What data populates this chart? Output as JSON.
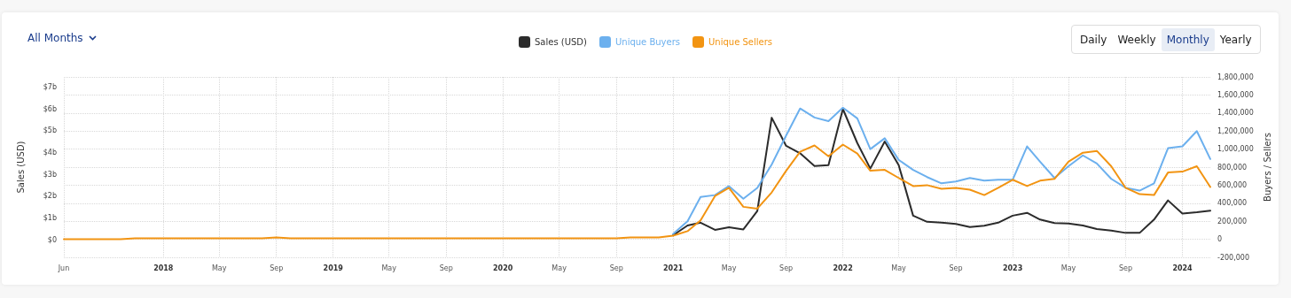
{
  "chart_data": {
    "type": "line",
    "ylabel": "Sales (USD)",
    "y2label": "Buyers / Sellers",
    "annotations": [
      "All Months",
      "Daily",
      "Weekly",
      "Monthly",
      "Yearly"
    ],
    "x": [
      "2017-06",
      "2017-07",
      "2017-08",
      "2017-09",
      "2017-10",
      "2017-11",
      "2017-12",
      "2018-01",
      "2018-02",
      "2018-03",
      "2018-04",
      "2018-05",
      "2018-06",
      "2018-07",
      "2018-08",
      "2018-09",
      "2018-10",
      "2018-11",
      "2018-12",
      "2019-01",
      "2019-02",
      "2019-03",
      "2019-04",
      "2019-05",
      "2019-06",
      "2019-07",
      "2019-08",
      "2019-09",
      "2019-10",
      "2019-11",
      "2019-12",
      "2020-01",
      "2020-02",
      "2020-03",
      "2020-04",
      "2020-05",
      "2020-06",
      "2020-07",
      "2020-08",
      "2020-09",
      "2020-10",
      "2020-11",
      "2020-12",
      "2021-01",
      "2021-02",
      "2021-03",
      "2021-04",
      "2021-05",
      "2021-06",
      "2021-07",
      "2021-08",
      "2021-09",
      "2021-10",
      "2021-11",
      "2021-12",
      "2022-01",
      "2022-02",
      "2022-03",
      "2022-04",
      "2022-05",
      "2022-06",
      "2022-07",
      "2022-08",
      "2022-09",
      "2022-10",
      "2022-11",
      "2022-12",
      "2023-01",
      "2023-02",
      "2023-03",
      "2023-04",
      "2023-05",
      "2023-06",
      "2023-07",
      "2023-08",
      "2023-09",
      "2023-10",
      "2023-11",
      "2023-12",
      "2024-01",
      "2024-02",
      "2024-03"
    ],
    "series": [
      {
        "name": "Sales (USD)",
        "color": "#2b2b2b",
        "values": [
          null,
          null,
          null,
          null,
          null,
          null,
          null,
          null,
          null,
          null,
          null,
          null,
          null,
          null,
          null,
          null,
          null,
          null,
          null,
          null,
          null,
          null,
          null,
          null,
          null,
          null,
          null,
          null,
          null,
          null,
          null,
          null,
          null,
          null,
          null,
          null,
          null,
          null,
          null,
          null,
          null,
          null,
          null,
          0.2,
          0.65,
          0.78,
          0.45,
          0.57,
          0.47,
          1.31,
          5.59,
          4.3,
          3.96,
          3.38,
          3.42,
          5.99,
          4.43,
          3.26,
          4.5,
          3.42,
          1.1,
          0.82,
          0.78,
          0.72,
          0.58,
          0.64,
          0.78,
          1.1,
          1.23,
          0.92,
          0.76,
          0.74,
          0.65,
          0.49,
          0.42,
          0.31,
          0.31,
          0.92,
          1.8,
          1.2,
          1.26,
          1.33
        ]
      },
      {
        "name": "Unique Buyers",
        "color": "#6cb0ee",
        "axis": "y2",
        "values": [
          null,
          null,
          null,
          null,
          null,
          null,
          null,
          null,
          null,
          null,
          null,
          null,
          null,
          null,
          null,
          null,
          null,
          null,
          null,
          null,
          null,
          null,
          null,
          null,
          null,
          null,
          null,
          null,
          null,
          null,
          null,
          null,
          null,
          null,
          null,
          null,
          null,
          null,
          null,
          null,
          null,
          null,
          null,
          60000,
          200000,
          470000,
          490000,
          590000,
          450000,
          570000,
          830000,
          1150000,
          1450000,
          1350000,
          1310000,
          1460000,
          1340000,
          1000000,
          1120000,
          880000,
          770000,
          690000,
          620000,
          640000,
          680000,
          650000,
          660000,
          660000,
          1030000,
          860000,
          680000,
          810000,
          930000,
          840000,
          670000,
          570000,
          540000,
          620000,
          1010000,
          1030000,
          1200000,
          890000
        ]
      },
      {
        "name": "Unique Sellers",
        "color": "#f29412",
        "axis": "y2",
        "values": [
          0,
          0,
          0,
          0,
          0,
          10000,
          10000,
          10000,
          10000,
          10000,
          10000,
          10000,
          10000,
          10000,
          10000,
          20000,
          10000,
          10000,
          10000,
          10000,
          10000,
          10000,
          10000,
          10000,
          10000,
          10000,
          10000,
          10000,
          10000,
          10000,
          10000,
          10000,
          10000,
          10000,
          10000,
          10000,
          10000,
          10000,
          10000,
          10000,
          20000,
          20000,
          20000,
          40000,
          90000,
          210000,
          480000,
          570000,
          360000,
          340000,
          520000,
          760000,
          970000,
          1040000,
          920000,
          1050000,
          950000,
          760000,
          770000,
          680000,
          590000,
          600000,
          560000,
          570000,
          550000,
          490000,
          570000,
          660000,
          590000,
          650000,
          670000,
          860000,
          960000,
          980000,
          810000,
          570000,
          500000,
          490000,
          740000,
          750000,
          810000,
          580000
        ]
      }
    ],
    "xlim": [
      "2017-06",
      "2024-03"
    ],
    "xticks": [
      {
        "value": "2017-06",
        "label": "Jun"
      },
      {
        "value": "2018-01",
        "label": "2018"
      },
      {
        "value": "2018-05",
        "label": "May"
      },
      {
        "value": "2018-09",
        "label": "Sep"
      },
      {
        "value": "2019-01",
        "label": "2019"
      },
      {
        "value": "2019-05",
        "label": "May"
      },
      {
        "value": "2019-09",
        "label": "Sep"
      },
      {
        "value": "2020-01",
        "label": "2020"
      },
      {
        "value": "2020-05",
        "label": "May"
      },
      {
        "value": "2020-09",
        "label": "Sep"
      },
      {
        "value": "2021-01",
        "label": "2021"
      },
      {
        "value": "2021-05",
        "label": "May"
      },
      {
        "value": "2021-09",
        "label": "Sep"
      },
      {
        "value": "2022-01",
        "label": "2022"
      },
      {
        "value": "2022-05",
        "label": "May"
      },
      {
        "value": "2022-09",
        "label": "Sep"
      },
      {
        "value": "2023-01",
        "label": "2023"
      },
      {
        "value": "2023-05",
        "label": "May"
      },
      {
        "value": "2023-09",
        "label": "Sep"
      },
      {
        "value": "2024-01",
        "label": "2024"
      }
    ],
    "ylim": [
      -0.81,
      7.46
    ],
    "yticks": [
      {
        "value": 0,
        "label": "$0"
      },
      {
        "value": 1,
        "label": "$1b"
      },
      {
        "value": 2,
        "label": "$2b"
      },
      {
        "value": 3,
        "label": "$3b"
      },
      {
        "value": 4,
        "label": "$4b"
      },
      {
        "value": 5,
        "label": "$5b"
      },
      {
        "value": 6,
        "label": "$6b"
      },
      {
        "value": 7,
        "label": "$7b"
      }
    ],
    "y2lim": [
      -200000,
      1800000
    ],
    "y2ticks": [
      {
        "value": -200000,
        "label": "-200,000"
      },
      {
        "value": 0,
        "label": "0"
      },
      {
        "value": 200000,
        "label": "200,000"
      },
      {
        "value": 400000,
        "label": "400,000"
      },
      {
        "value": 600000,
        "label": "600,000"
      },
      {
        "value": 800000,
        "label": "800,000"
      },
      {
        "value": 1000000,
        "label": "1,000,000"
      },
      {
        "value": 1200000,
        "label": "1,200,000"
      },
      {
        "value": 1400000,
        "label": "1,400,000"
      },
      {
        "value": 1600000,
        "label": "1,600,000"
      },
      {
        "value": 1800000,
        "label": "1,800,000"
      }
    ],
    "grid": true,
    "legend": "top",
    "marker": "none",
    "line_style": "solid"
  }
}
